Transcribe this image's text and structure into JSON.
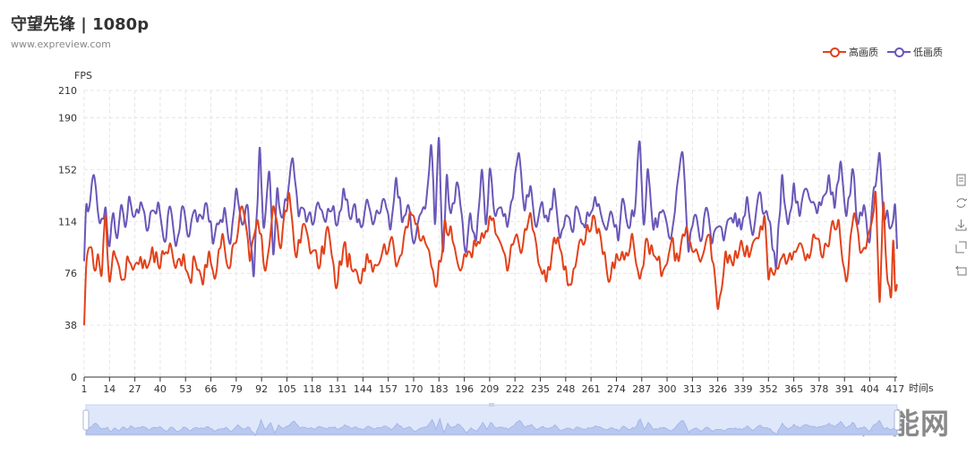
{
  "header": {
    "title": "守望先锋 | 1080p",
    "subtitle": "www.expreview.com"
  },
  "legend": {
    "items": [
      {
        "label": "高画质",
        "color": "#e2421b"
      },
      {
        "label": "低画质",
        "color": "#6a57b8"
      }
    ]
  },
  "toolbox": {
    "icons": [
      "data-view-icon",
      "restore-icon",
      "save-image-icon",
      "zoom-icon",
      "zoom-reset-icon"
    ]
  },
  "watermark": "超能网",
  "chart_data": {
    "type": "line",
    "title": "守望先锋 | 1080p",
    "ylabel": "FPS",
    "xlabel": "时间s",
    "ylim": [
      0,
      210
    ],
    "y_ticks": [
      0,
      38,
      76,
      114,
      152,
      190,
      210
    ],
    "x_tick_labels": [
      1,
      14,
      27,
      40,
      53,
      66,
      79,
      92,
      105,
      118,
      131,
      144,
      157,
      170,
      183,
      196,
      209,
      222,
      235,
      248,
      261,
      274,
      287,
      300,
      313,
      326,
      339,
      352,
      365,
      378,
      391,
      404,
      417
    ],
    "x_range": [
      1,
      418
    ],
    "legend_position": "top-right",
    "grid": true,
    "series": [
      {
        "name": "高画质",
        "color": "#e2421b",
        "keypoints": [
          [
            1,
            38
          ],
          [
            2,
            80
          ],
          [
            4,
            95
          ],
          [
            6,
            80
          ],
          [
            8,
            90
          ],
          [
            10,
            75
          ],
          [
            12,
            118
          ],
          [
            14,
            70
          ],
          [
            16,
            92
          ],
          [
            18,
            85
          ],
          [
            20,
            72
          ],
          [
            24,
            85
          ],
          [
            27,
            82
          ],
          [
            30,
            88
          ],
          [
            33,
            80
          ],
          [
            36,
            95
          ],
          [
            39,
            82
          ],
          [
            42,
            90
          ],
          [
            45,
            98
          ],
          [
            48,
            80
          ],
          [
            52,
            90
          ],
          [
            55,
            72
          ],
          [
            58,
            85
          ],
          [
            62,
            68
          ],
          [
            65,
            92
          ],
          [
            68,
            72
          ],
          [
            72,
            105
          ],
          [
            75,
            80
          ],
          [
            78,
            98
          ],
          [
            82,
            125
          ],
          [
            86,
            85
          ],
          [
            90,
            115
          ],
          [
            94,
            78
          ],
          [
            98,
            125
          ],
          [
            102,
            95
          ],
          [
            106,
            135
          ],
          [
            110,
            88
          ],
          [
            114,
            112
          ],
          [
            118,
            92
          ],
          [
            122,
            82
          ],
          [
            126,
            110
          ],
          [
            130,
            66
          ],
          [
            134,
            95
          ],
          [
            138,
            80
          ],
          [
            142,
            70
          ],
          [
            146,
            90
          ],
          [
            150,
            82
          ],
          [
            154,
            92
          ],
          [
            158,
            100
          ],
          [
            162,
            84
          ],
          [
            166,
            110
          ],
          [
            170,
            118
          ],
          [
            174,
            100
          ],
          [
            178,
            92
          ],
          [
            182,
            68
          ],
          [
            186,
            115
          ],
          [
            190,
            100
          ],
          [
            194,
            78
          ],
          [
            198,
            92
          ],
          [
            202,
            96
          ],
          [
            206,
            102
          ],
          [
            210,
            115
          ],
          [
            214,
            100
          ],
          [
            218,
            78
          ],
          [
            222,
            102
          ],
          [
            226,
            96
          ],
          [
            230,
            120
          ],
          [
            234,
            84
          ],
          [
            238,
            70
          ],
          [
            242,
            102
          ],
          [
            246,
            90
          ],
          [
            250,
            68
          ],
          [
            254,
            90
          ],
          [
            258,
            100
          ],
          [
            262,
            118
          ],
          [
            266,
            102
          ],
          [
            270,
            70
          ],
          [
            274,
            90
          ],
          [
            278,
            86
          ],
          [
            282,
            105
          ],
          [
            286,
            72
          ],
          [
            290,
            100
          ],
          [
            294,
            88
          ],
          [
            298,
            78
          ],
          [
            302,
            98
          ],
          [
            306,
            85
          ],
          [
            310,
            110
          ],
          [
            314,
            92
          ],
          [
            318,
            88
          ],
          [
            322,
            102
          ],
          [
            326,
            50
          ],
          [
            330,
            92
          ],
          [
            334,
            82
          ],
          [
            338,
            100
          ],
          [
            342,
            88
          ],
          [
            346,
            102
          ],
          [
            350,
            118
          ],
          [
            352,
            72
          ],
          [
            356,
            80
          ],
          [
            360,
            90
          ],
          [
            364,
            86
          ],
          [
            368,
            98
          ],
          [
            372,
            90
          ],
          [
            376,
            102
          ],
          [
            380,
            88
          ],
          [
            384,
            108
          ],
          [
            388,
            115
          ],
          [
            392,
            70
          ],
          [
            396,
            120
          ],
          [
            400,
            92
          ],
          [
            404,
            108
          ],
          [
            407,
            135
          ],
          [
            409,
            55
          ],
          [
            411,
            128
          ],
          [
            413,
            72
          ],
          [
            415,
            60
          ],
          [
            416,
            100
          ],
          [
            417,
            65
          ],
          [
            418,
            68
          ]
        ]
      },
      {
        "name": "低画质",
        "color": "#6a57b8",
        "keypoints": [
          [
            1,
            85
          ],
          [
            2,
            125
          ],
          [
            4,
            128
          ],
          [
            6,
            148
          ],
          [
            8,
            122
          ],
          [
            10,
            116
          ],
          [
            12,
            124
          ],
          [
            14,
            96
          ],
          [
            16,
            120
          ],
          [
            18,
            102
          ],
          [
            20,
            126
          ],
          [
            22,
            110
          ],
          [
            24,
            132
          ],
          [
            27,
            118
          ],
          [
            30,
            128
          ],
          [
            33,
            108
          ],
          [
            36,
            122
          ],
          [
            39,
            128
          ],
          [
            42,
            100
          ],
          [
            45,
            125
          ],
          [
            48,
            96
          ],
          [
            52,
            124
          ],
          [
            55,
            104
          ],
          [
            58,
            122
          ],
          [
            61,
            118
          ],
          [
            64,
            126
          ],
          [
            67,
            98
          ],
          [
            70,
            112
          ],
          [
            73,
            124
          ],
          [
            76,
            98
          ],
          [
            79,
            138
          ],
          [
            82,
            112
          ],
          [
            85,
            124
          ],
          [
            88,
            74
          ],
          [
            91,
            168
          ],
          [
            93,
            110
          ],
          [
            96,
            150
          ],
          [
            98,
            90
          ],
          [
            100,
            138
          ],
          [
            102,
            118
          ],
          [
            105,
            130
          ],
          [
            108,
            160
          ],
          [
            111,
            118
          ],
          [
            114,
            122
          ],
          [
            118,
            112
          ],
          [
            121,
            128
          ],
          [
            124,
            116
          ],
          [
            128,
            122
          ],
          [
            131,
            112
          ],
          [
            134,
            138
          ],
          [
            137,
            118
          ],
          [
            140,
            126
          ],
          [
            143,
            110
          ],
          [
            146,
            130
          ],
          [
            149,
            112
          ],
          [
            152,
            120
          ],
          [
            155,
            130
          ],
          [
            158,
            108
          ],
          [
            161,
            146
          ],
          [
            164,
            114
          ],
          [
            167,
            126
          ],
          [
            170,
            98
          ],
          [
            173,
            118
          ],
          [
            176,
            124
          ],
          [
            179,
            170
          ],
          [
            181,
            112
          ],
          [
            183,
            175
          ],
          [
            185,
            92
          ],
          [
            187,
            148
          ],
          [
            189,
            120
          ],
          [
            192,
            142
          ],
          [
            195,
            115
          ],
          [
            197,
            92
          ],
          [
            199,
            120
          ],
          [
            202,
            100
          ],
          [
            205,
            152
          ],
          [
            207,
            112
          ],
          [
            209,
            152
          ],
          [
            212,
            118
          ],
          [
            215,
            124
          ],
          [
            218,
            110
          ],
          [
            221,
            132
          ],
          [
            224,
            164
          ],
          [
            227,
            122
          ],
          [
            230,
            140
          ],
          [
            233,
            110
          ],
          [
            236,
            128
          ],
          [
            239,
            114
          ],
          [
            242,
            138
          ],
          [
            245,
            102
          ],
          [
            248,
            118
          ],
          [
            251,
            108
          ],
          [
            254,
            124
          ],
          [
            257,
            112
          ],
          [
            260,
            118
          ],
          [
            263,
            132
          ],
          [
            266,
            120
          ],
          [
            269,
            108
          ],
          [
            272,
            118
          ],
          [
            275,
            100
          ],
          [
            277,
            130
          ],
          [
            280,
            110
          ],
          [
            283,
            118
          ],
          [
            286,
            172
          ],
          [
            288,
            112
          ],
          [
            290,
            152
          ],
          [
            293,
            108
          ],
          [
            296,
            120
          ],
          [
            299,
            118
          ],
          [
            302,
            102
          ],
          [
            305,
            138
          ],
          [
            308,
            164
          ],
          [
            311,
            92
          ],
          [
            314,
            118
          ],
          [
            317,
            100
          ],
          [
            320,
            124
          ],
          [
            323,
            98
          ],
          [
            326,
            110
          ],
          [
            329,
            100
          ],
          [
            332,
            116
          ],
          [
            335,
            120
          ],
          [
            338,
            108
          ],
          [
            341,
            132
          ],
          [
            344,
            104
          ],
          [
            347,
            134
          ],
          [
            350,
            120
          ],
          [
            353,
            112
          ],
          [
            356,
            80
          ],
          [
            359,
            148
          ],
          [
            362,
            112
          ],
          [
            365,
            142
          ],
          [
            368,
            118
          ],
          [
            371,
            138
          ],
          [
            374,
            128
          ],
          [
            377,
            120
          ],
          [
            380,
            132
          ],
          [
            383,
            148
          ],
          [
            386,
            124
          ],
          [
            389,
            158
          ],
          [
            392,
            118
          ],
          [
            395,
            152
          ],
          [
            398,
            112
          ],
          [
            401,
            126
          ],
          [
            404,
            100
          ],
          [
            406,
            138
          ],
          [
            409,
            164
          ],
          [
            411,
            118
          ],
          [
            413,
            122
          ],
          [
            415,
            110
          ],
          [
            417,
            126
          ],
          [
            418,
            94
          ]
        ]
      }
    ]
  }
}
